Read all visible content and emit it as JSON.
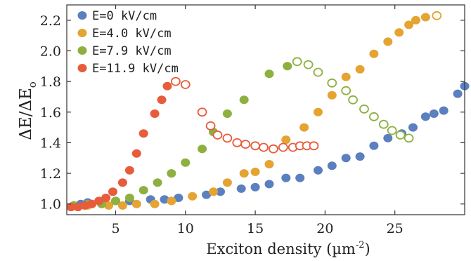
{
  "chart_data": {
    "type": "scatter",
    "title": "",
    "xlabel": "Exciton density (µm",
    "xlabel_sup": "-2",
    "xlabel_close": ")",
    "ylabel": "ΔE/ΔE",
    "ylabel_sub": "o",
    "xlim": [
      1.5,
      30
    ],
    "ylim": [
      0.93,
      2.3
    ],
    "xticks": [
      5,
      10,
      15,
      20,
      25
    ],
    "yticks": [
      1.0,
      1.2,
      1.4,
      1.6,
      1.8,
      2.0,
      2.2
    ],
    "ytick_labels": [
      "1.0",
      "1.2",
      "1.4",
      "1.6",
      "1.8",
      "2.0",
      "2.2"
    ],
    "legend_position": "top-left",
    "grid": false,
    "series": [
      {
        "name": "E=0 kV/cm",
        "color": "#5b7fbf",
        "filled": [
          [
            2.0,
            0.99
          ],
          [
            2.5,
            1.0
          ],
          [
            3.0,
            1.01
          ],
          [
            4.0,
            1.01
          ],
          [
            5.0,
            1.02
          ],
          [
            6.0,
            1.02
          ],
          [
            7.5,
            1.03
          ],
          [
            8.5,
            1.03
          ],
          [
            9.5,
            1.04
          ],
          [
            11.5,
            1.06
          ],
          [
            12.5,
            1.08
          ],
          [
            14.0,
            1.1
          ],
          [
            15.0,
            1.11
          ],
          [
            16.0,
            1.13
          ],
          [
            17.2,
            1.17
          ],
          [
            18.2,
            1.17
          ],
          [
            19.5,
            1.22
          ],
          [
            20.5,
            1.25
          ],
          [
            21.5,
            1.3
          ],
          [
            22.5,
            1.31
          ],
          [
            23.5,
            1.38
          ],
          [
            24.5,
            1.43
          ],
          [
            25.5,
            1.46
          ],
          [
            26.3,
            1.5
          ],
          [
            27.2,
            1.57
          ],
          [
            27.8,
            1.59
          ],
          [
            28.5,
            1.61
          ],
          [
            29.5,
            1.72
          ],
          [
            30.0,
            1.77
          ]
        ],
        "open": []
      },
      {
        "name": "E=4.0 kV/cm",
        "color": "#e5a332",
        "filled": [
          [
            2.0,
            0.99
          ],
          [
            3.0,
            0.99
          ],
          [
            4.5,
            0.99
          ],
          [
            5.5,
            0.99
          ],
          [
            6.5,
            1.0
          ],
          [
            7.8,
            1.0
          ],
          [
            9.0,
            1.02
          ],
          [
            10.5,
            1.05
          ],
          [
            12.0,
            1.08
          ],
          [
            13.0,
            1.14
          ],
          [
            14.2,
            1.2
          ],
          [
            15.0,
            1.21
          ],
          [
            16.0,
            1.26
          ],
          [
            17.2,
            1.42
          ],
          [
            18.5,
            1.5
          ],
          [
            19.5,
            1.6
          ],
          [
            20.5,
            1.71
          ],
          [
            21.5,
            1.83
          ],
          [
            22.5,
            1.88
          ],
          [
            23.5,
            1.98
          ],
          [
            24.5,
            2.06
          ],
          [
            25.3,
            2.12
          ],
          [
            26.0,
            2.17
          ],
          [
            26.5,
            2.2
          ],
          [
            27.2,
            2.22
          ]
        ],
        "open": [
          [
            28.0,
            2.23
          ]
        ]
      },
      {
        "name": "E=7.9 kV/cm",
        "color": "#8db040",
        "filled": [
          [
            2.0,
            0.99
          ],
          [
            3.0,
            1.0
          ],
          [
            4.0,
            1.0
          ],
          [
            5.0,
            1.02
          ],
          [
            6.0,
            1.04
          ],
          [
            7.0,
            1.09
          ],
          [
            8.0,
            1.14
          ],
          [
            9.0,
            1.2
          ],
          [
            10.0,
            1.27
          ],
          [
            11.2,
            1.36
          ],
          [
            12.0,
            1.47
          ],
          [
            13.0,
            1.59
          ],
          [
            14.2,
            1.68
          ],
          [
            16.0,
            1.85
          ],
          [
            17.3,
            1.9
          ]
        ],
        "open": [
          [
            18.0,
            1.93
          ],
          [
            18.8,
            1.91
          ],
          [
            19.5,
            1.86
          ],
          [
            20.5,
            1.79
          ],
          [
            21.5,
            1.74
          ],
          [
            22.0,
            1.68
          ],
          [
            22.8,
            1.62
          ],
          [
            23.5,
            1.57
          ],
          [
            24.2,
            1.52
          ],
          [
            24.8,
            1.48
          ],
          [
            25.4,
            1.45
          ],
          [
            26.0,
            1.43
          ]
        ]
      },
      {
        "name": "E=11.9 kV/cm",
        "color": "#e75c3b",
        "filled": [
          [
            1.8,
            0.98
          ],
          [
            2.3,
            0.98
          ],
          [
            2.8,
            0.99
          ],
          [
            3.3,
            1.0
          ],
          [
            3.8,
            1.02
          ],
          [
            4.3,
            1.04
          ],
          [
            4.8,
            1.08
          ],
          [
            5.5,
            1.14
          ],
          [
            6.0,
            1.22
          ],
          [
            6.5,
            1.33
          ],
          [
            7.0,
            1.46
          ],
          [
            7.8,
            1.59
          ],
          [
            8.3,
            1.68
          ],
          [
            8.7,
            1.77
          ]
        ],
        "open": [
          [
            9.3,
            1.8
          ],
          [
            10.0,
            1.78
          ],
          [
            11.2,
            1.6
          ],
          [
            11.8,
            1.51
          ],
          [
            12.3,
            1.45
          ],
          [
            13.0,
            1.43
          ],
          [
            13.7,
            1.4
          ],
          [
            14.3,
            1.39
          ],
          [
            15.0,
            1.38
          ],
          [
            15.6,
            1.37
          ],
          [
            16.3,
            1.36
          ],
          [
            17.0,
            1.37
          ],
          [
            17.7,
            1.37
          ],
          [
            18.2,
            1.38
          ],
          [
            18.7,
            1.38
          ],
          [
            19.2,
            1.38
          ]
        ]
      }
    ]
  }
}
